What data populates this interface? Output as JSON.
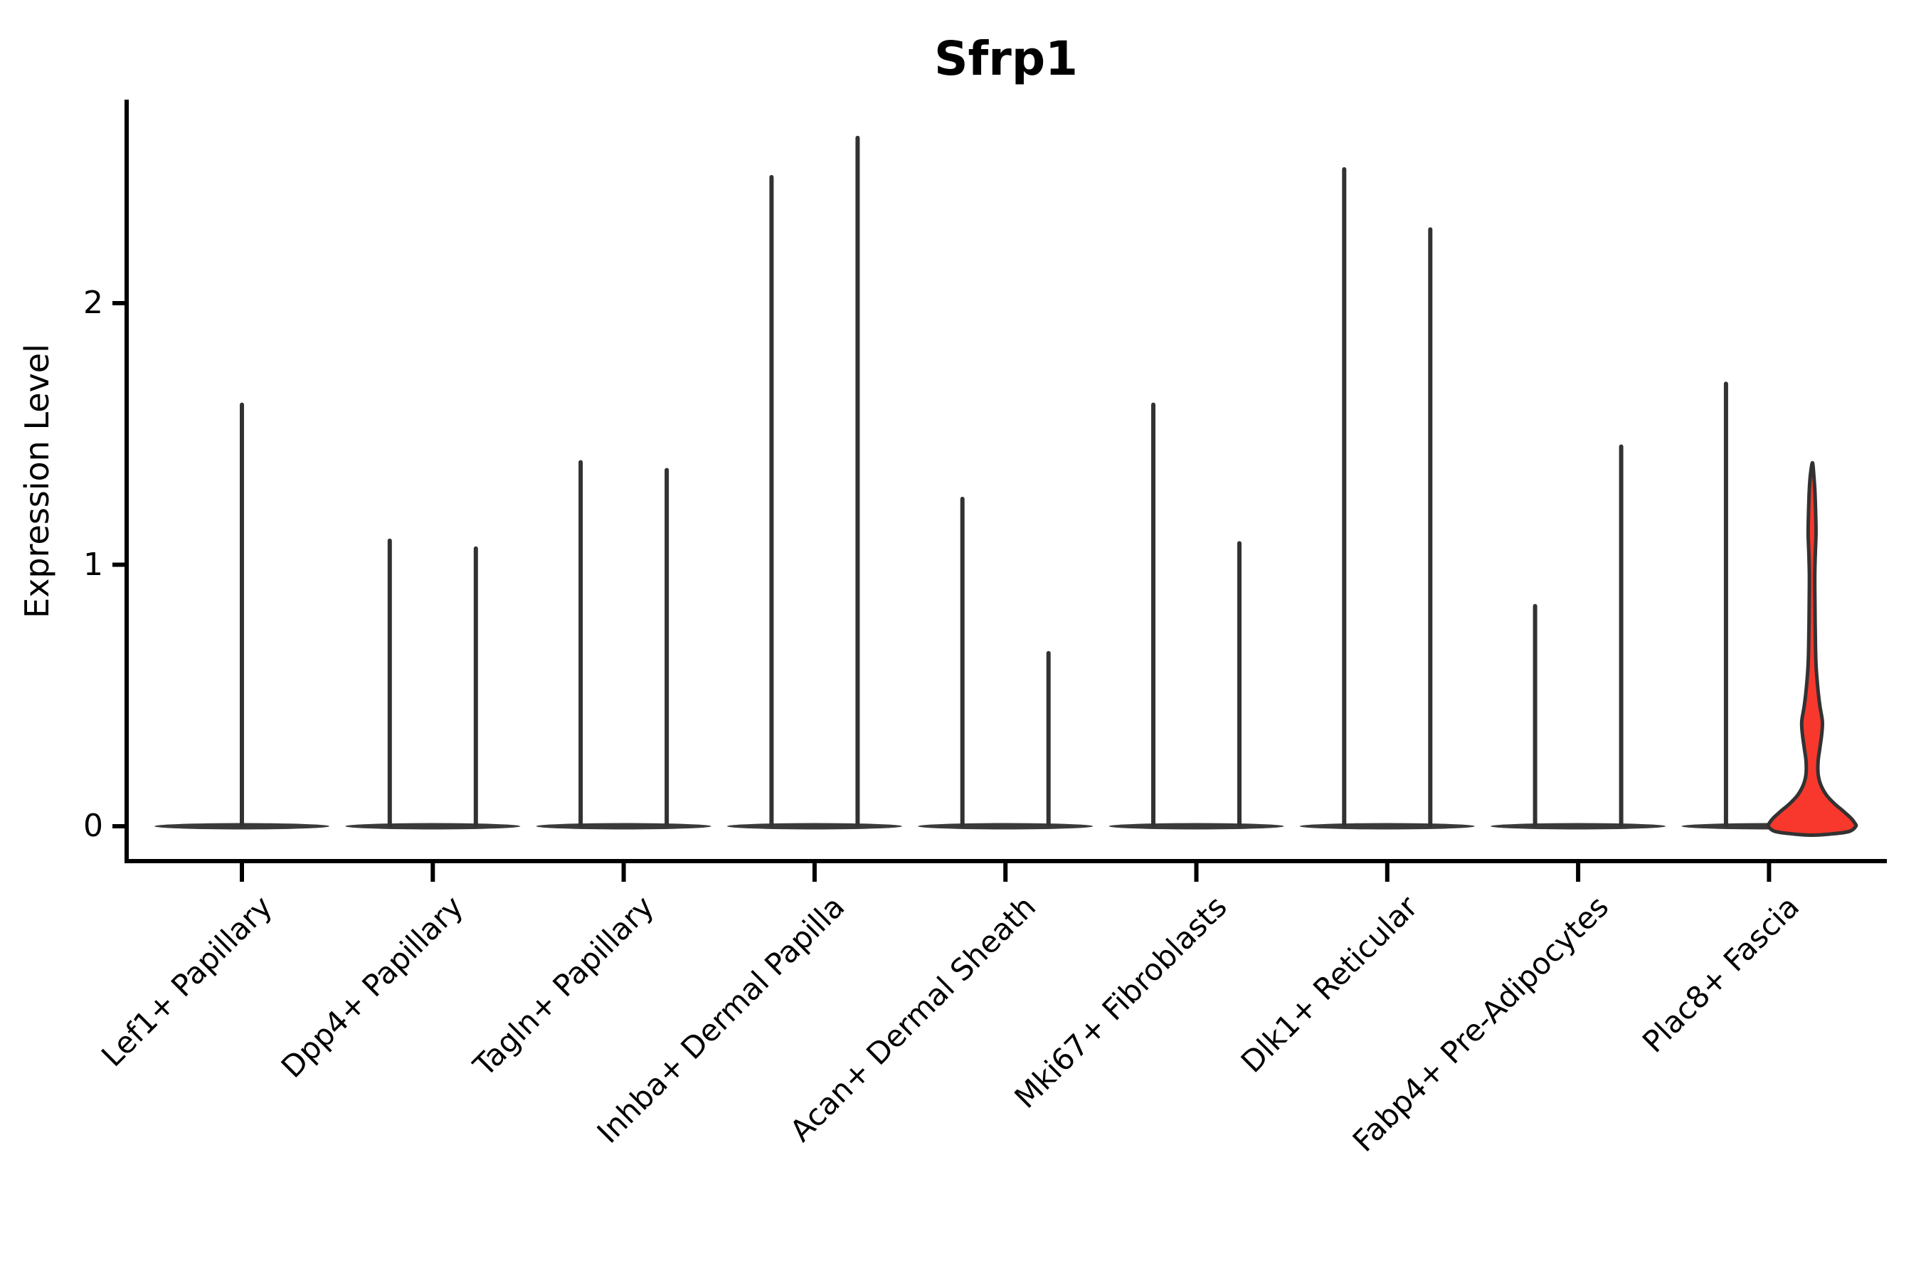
{
  "title": "Sfrp1",
  "y_axis": {
    "label": "Expression Level",
    "tick_labels": [
      "0",
      "1",
      "2"
    ],
    "tick_values": [
      0,
      1,
      2
    ]
  },
  "x_axis": {
    "categories": [
      "Lef1+ Papillary",
      "Dpp4+ Papillary",
      "Tagln+ Papillary",
      "Inhba+ Dermal Papilla",
      "Acan+ Dermal Sheath",
      "Mki67+ Fibroblasts",
      "Dlk1+ Reticular",
      "Fabp4+ Pre-Adipocytes",
      "Plac8+ Fascia"
    ]
  },
  "colors": {
    "violin_stroke": "#323232",
    "base_bar": "#3a3a3a",
    "highlight_fill": "#f8382c",
    "axis": "#000000",
    "text": "#000000"
  },
  "chart_data": {
    "type": "violin",
    "title": "Sfrp1",
    "xlabel": "",
    "ylabel": "Expression Level",
    "ylim": [
      -0.05,
      2.77
    ],
    "yticks": [
      0,
      1,
      2
    ],
    "grid": false,
    "legend": "none",
    "description": "Violin plot of Sfrp1 expression across 9 fibroblast cell types; two thin violins per category collapsed to spikes at a flat zero baseline; only the right violin of Plac8+ Fascia has visible width and is filled red.",
    "categories": [
      "Lef1+ Papillary",
      "Dpp4+ Papillary",
      "Tagln+ Papillary",
      "Inhba+ Dermal Papilla",
      "Acan+ Dermal Sheath",
      "Mki67+ Fibroblasts",
      "Dlk1+ Reticular",
      "Fabp4+ Pre-Adipocytes",
      "Plac8+ Fascia"
    ],
    "violins": [
      {
        "category": "Lef1+ Papillary",
        "spikes": [
          {
            "slot": "center",
            "max": 1.62
          }
        ]
      },
      {
        "category": "Dpp4+ Papillary",
        "spikes": [
          {
            "slot": "left",
            "max": 1.1
          },
          {
            "slot": "right",
            "max": 1.07
          }
        ]
      },
      {
        "category": "Tagln+ Papillary",
        "spikes": [
          {
            "slot": "left",
            "max": 1.4
          },
          {
            "slot": "right",
            "max": 1.37
          }
        ]
      },
      {
        "category": "Inhba+ Dermal Papilla",
        "spikes": [
          {
            "slot": "left",
            "max": 2.49
          },
          {
            "slot": "right",
            "max": 2.64
          }
        ]
      },
      {
        "category": "Acan+ Dermal Sheath",
        "spikes": [
          {
            "slot": "left",
            "max": 1.26
          },
          {
            "slot": "right",
            "max": 0.67
          }
        ]
      },
      {
        "category": "Mki67+ Fibroblasts",
        "spikes": [
          {
            "slot": "left",
            "max": 1.62
          },
          {
            "slot": "right",
            "max": 1.09
          }
        ]
      },
      {
        "category": "Dlk1+ Reticular",
        "spikes": [
          {
            "slot": "left",
            "max": 2.52
          },
          {
            "slot": "right",
            "max": 2.29
          }
        ]
      },
      {
        "category": "Fabp4+ Pre-Adipocytes",
        "spikes": [
          {
            "slot": "left",
            "max": 0.85
          },
          {
            "slot": "right",
            "max": 1.46
          }
        ]
      },
      {
        "category": "Plac8+ Fascia",
        "spikes": [
          {
            "slot": "left",
            "max": 1.7
          }
        ],
        "highlight_violin": {
          "slot": "right",
          "max": 1.39,
          "profile": [
            [
              1.39,
              0.008
            ],
            [
              1.34,
              0.04
            ],
            [
              1.28,
              0.065
            ],
            [
              1.2,
              0.081
            ],
            [
              1.12,
              0.089
            ],
            [
              1.04,
              0.073
            ],
            [
              0.96,
              0.062
            ],
            [
              0.86,
              0.065
            ],
            [
              0.74,
              0.073
            ],
            [
              0.62,
              0.089
            ],
            [
              0.53,
              0.13
            ],
            [
              0.46,
              0.179
            ],
            [
              0.4,
              0.236
            ],
            [
              0.35,
              0.22
            ],
            [
              0.3,
              0.179
            ],
            [
              0.25,
              0.138
            ],
            [
              0.2,
              0.138
            ],
            [
              0.16,
              0.195
            ],
            [
              0.12,
              0.325
            ],
            [
              0.085,
              0.52
            ],
            [
              0.055,
              0.732
            ],
            [
              0.03,
              0.894
            ],
            [
              0.012,
              0.976
            ],
            [
              0.0,
              1.0
            ],
            [
              -0.02,
              0.845
            ],
            [
              -0.03,
              0.407
            ],
            [
              -0.034,
              0.0
            ]
          ]
        }
      }
    ]
  }
}
